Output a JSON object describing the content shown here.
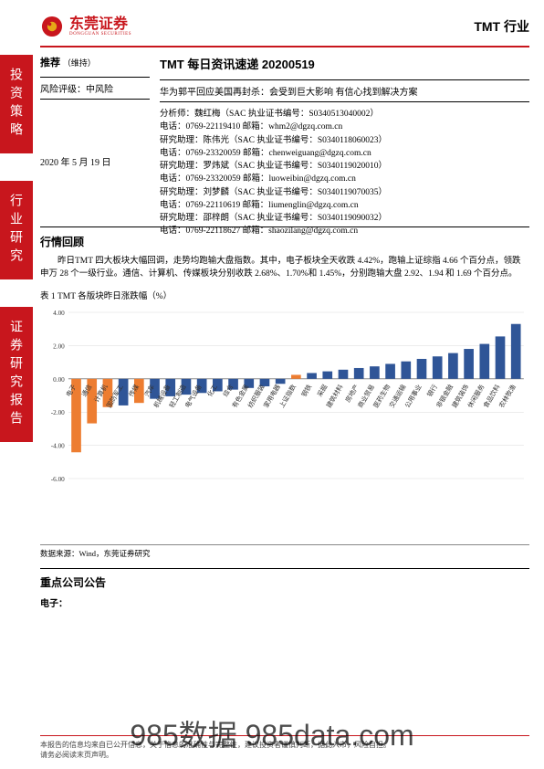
{
  "header": {
    "brand_cn": "东莞证券",
    "brand_en": "DONGGUAN SECURITIES",
    "industry": "TMT 行业",
    "logo_colors": {
      "red": "#c8161d",
      "gold": "#e6a817"
    }
  },
  "sidebar": {
    "block1": "投资策略",
    "block2": "行业研究",
    "block3": "证券研究报告"
  },
  "left": {
    "rating": "推荐",
    "rating_note": "（维持）",
    "risk_label": "风险评级：",
    "risk_value": "中风险",
    "date": "2020 年 5 月 19 日"
  },
  "right": {
    "title": "TMT 每日资讯速递 20200519",
    "subtitle": "华为郭平回应美国再封杀：会受到巨大影响 有信心找到解决方案",
    "analysts": [
      "分析师：魏红梅（SAC 执业证书编号：S0340513040002）",
      "电话：0769-22119410   邮箱：whm2@dgzq.com.cn",
      "研究助理：陈伟光（SAC 执业证书编号：S0340118060023）",
      "电话：0769-23320059   邮箱：chenweiguang@dgzq.com.cn",
      "研究助理：罗炜斌（SAC 执业证书编号：S0340119020010）",
      "电话：0769-23320059   邮箱：luoweibin@dgzq.com.cn",
      "研究助理：刘梦麟（SAC 执业证书编号：S0340119070035）",
      "电话：0769-22110619   邮箱：liumenglin@dgzq.com.cn",
      "研究助理：邵梓朗（SAC 执业证书编号：S0340119090032）",
      "电话：0769-22118627   邮箱：shaozilang@dgzq.com.cn"
    ]
  },
  "review": {
    "title": "行情回顾",
    "para": "昨日TMT 四大板块大幅回调，走势均跑输大盘指数。其中，电子板块全天收跌 4.42%，跑输上证综指 4.66 个百分点，领跌申万 28 个一级行业。通信、计算机、传媒板块分别收跌 2.68%、1.70%和 1.45%，分别跑输大盘 2.92、1.94 和 1.69 个百分点。"
  },
  "chart": {
    "title": "表 1 TMT 各版块昨日涨跌幅（%）",
    "source": "数据来源：Wind，东莞证券研究",
    "type": "bar",
    "ylim": [
      -6,
      4
    ],
    "ytick_step": 2,
    "grid_color": "#d9d9d9",
    "background": "#ffffff",
    "axis_color": "#888888",
    "label_fontsize": 7,
    "bar_width": 0.62,
    "categories": [
      "电子",
      "通信",
      "计算机",
      "国防军工",
      "传媒",
      "汽车",
      "机械设备",
      "轻工制造",
      "电气设备",
      "化工",
      "综合",
      "有色金属",
      "纺织服装",
      "家用电器",
      "上证指数",
      "钢铁",
      "采掘",
      "建筑材料",
      "房地产",
      "商业贸易",
      "医药生物",
      "交通运输",
      "公用事业",
      "银行",
      "非银金融",
      "建筑装饰",
      "休闲服务",
      "食品饮料",
      "农林牧渔"
    ],
    "values": [
      -4.42,
      -2.68,
      -1.7,
      -1.6,
      -1.45,
      -1.2,
      -1.05,
      -0.95,
      -0.85,
      -0.75,
      -0.65,
      -0.55,
      -0.45,
      -0.3,
      0.24,
      0.35,
      0.45,
      0.55,
      0.65,
      0.75,
      0.9,
      1.05,
      1.2,
      1.35,
      1.55,
      1.8,
      2.1,
      2.55,
      3.3
    ],
    "default_color": "#2f5597",
    "highlight_color": "#ed7d31",
    "highlight_indices": [
      0,
      1,
      2,
      4,
      14
    ]
  },
  "announce": {
    "title": "重点公司公告",
    "sub": "电子："
  },
  "footer": {
    "line1": "本报告的信息均来自已公开信息，关于信息的准确性与完整性，建议投资者谨慎判断，据此入市，风险自担。",
    "line2": "请务必阅读末页声明。"
  },
  "watermark": "985数据 985data.com"
}
